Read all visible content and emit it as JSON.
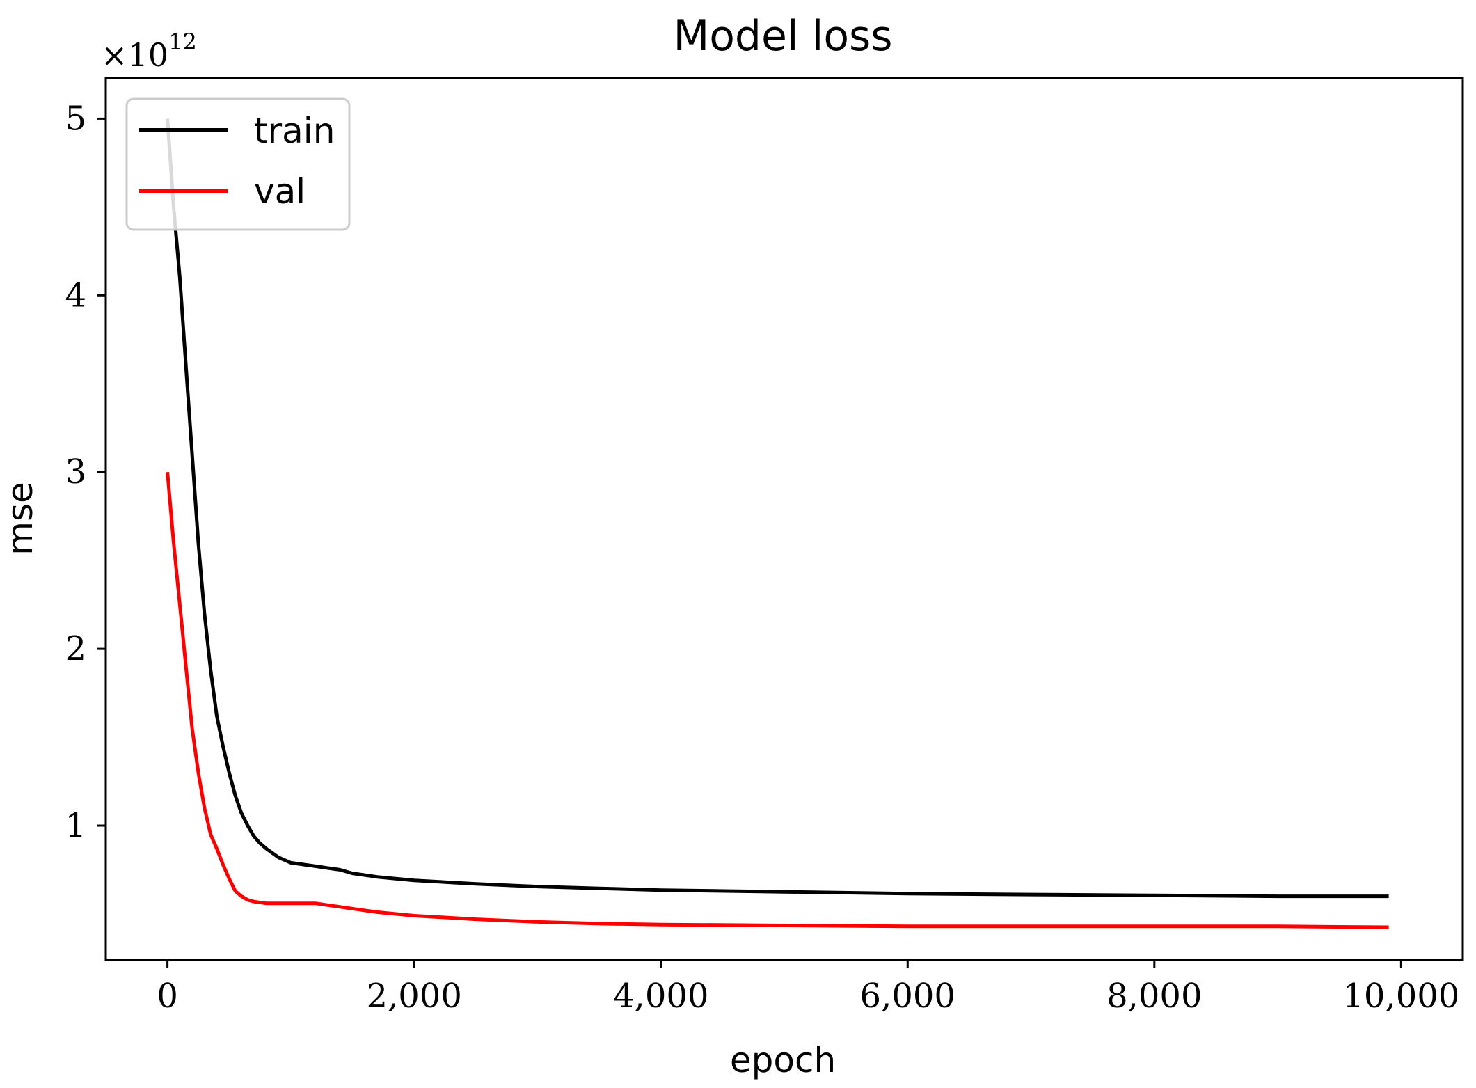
{
  "chart_data": {
    "type": "line",
    "title": "Model loss",
    "xlabel": "epoch",
    "ylabel": "mse",
    "y_offset_base": "×10",
    "y_offset_exponent": "12",
    "y_scale": 1000000000000.0,
    "xlim": [
      -500,
      10500
    ],
    "ylim": [
      0.24,
      5.23
    ],
    "x_ticks": [
      0,
      2000,
      4000,
      6000,
      8000,
      10000
    ],
    "x_tick_labels": [
      "0",
      "2,000",
      "4,000",
      "6,000",
      "8,000",
      "10,000"
    ],
    "y_ticks": [
      1,
      2,
      3,
      4,
      5
    ],
    "y_tick_labels": [
      "1",
      "2",
      "3",
      "4",
      "5"
    ],
    "grid": false,
    "legend_position": "upper-left",
    "series": [
      {
        "name": "train",
        "color": "#000000",
        "x": [
          0,
          50,
          100,
          150,
          200,
          250,
          300,
          350,
          400,
          450,
          500,
          550,
          600,
          650,
          700,
          750,
          800,
          900,
          1000,
          1100,
          1200,
          1300,
          1400,
          1500,
          1700,
          2000,
          2500,
          3000,
          3500,
          4000,
          5000,
          6000,
          7000,
          8000,
          9000,
          9900
        ],
        "values": [
          5.0,
          4.5,
          4.1,
          3.6,
          3.1,
          2.6,
          2.2,
          1.88,
          1.62,
          1.45,
          1.3,
          1.17,
          1.07,
          1.0,
          0.94,
          0.9,
          0.87,
          0.82,
          0.79,
          0.78,
          0.77,
          0.76,
          0.75,
          0.73,
          0.71,
          0.69,
          0.67,
          0.655,
          0.645,
          0.635,
          0.625,
          0.615,
          0.61,
          0.605,
          0.6,
          0.6
        ]
      },
      {
        "name": "val",
        "color": "#ff0000",
        "x": [
          0,
          50,
          100,
          150,
          200,
          250,
          300,
          350,
          400,
          450,
          500,
          550,
          600,
          650,
          700,
          800,
          900,
          1000,
          1100,
          1200,
          1300,
          1400,
          1500,
          1700,
          2000,
          2500,
          3000,
          3500,
          4000,
          5000,
          6000,
          7000,
          8000,
          9000,
          9900
        ],
        "values": [
          3.0,
          2.6,
          2.25,
          1.9,
          1.55,
          1.3,
          1.1,
          0.95,
          0.87,
          0.78,
          0.7,
          0.63,
          0.6,
          0.58,
          0.57,
          0.56,
          0.56,
          0.56,
          0.56,
          0.56,
          0.55,
          0.54,
          0.53,
          0.51,
          0.49,
          0.47,
          0.455,
          0.445,
          0.44,
          0.435,
          0.43,
          0.43,
          0.43,
          0.43,
          0.425
        ]
      }
    ]
  }
}
